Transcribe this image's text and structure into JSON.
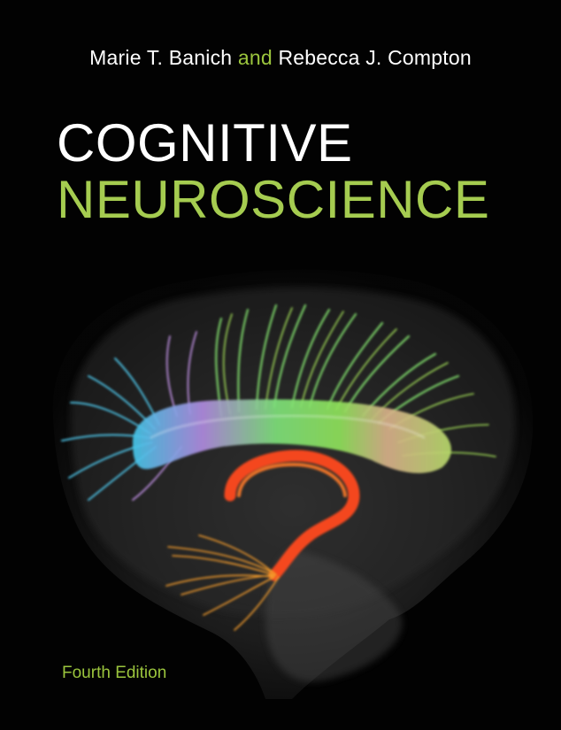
{
  "cover": {
    "author1": "Marie T. Banich",
    "conjunction": "and",
    "author2": "Rebecca J. Compton",
    "title_line1": "COGNITIVE",
    "title_line2": "NEUROSCIENCE",
    "edition": "Fourth Edition"
  },
  "colors": {
    "background": "#020202",
    "accent_green": "#a5cc50",
    "title_white": "#ffffff"
  },
  "image": {
    "subject": "brain-tractography-illustration"
  }
}
